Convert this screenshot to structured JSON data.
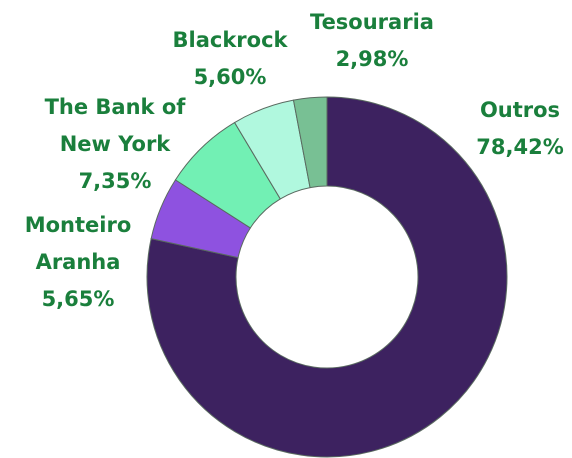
{
  "chart_data": {
    "type": "donut",
    "categories": [
      "Outros",
      "Monteiro Aranha",
      "The Bank of New York",
      "Blackrock",
      "Tesouraria"
    ],
    "values": [
      78.42,
      5.65,
      7.35,
      5.6,
      2.98
    ],
    "value_labels": [
      "78,42%",
      "5,65%",
      "7,35%",
      "5,60%",
      "2,98%"
    ],
    "colors": [
      "#3d2260",
      "#8e52e0",
      "#72f0b4",
      "#b0f8de",
      "#78c094"
    ],
    "label_color": "#1a7f3c"
  }
}
